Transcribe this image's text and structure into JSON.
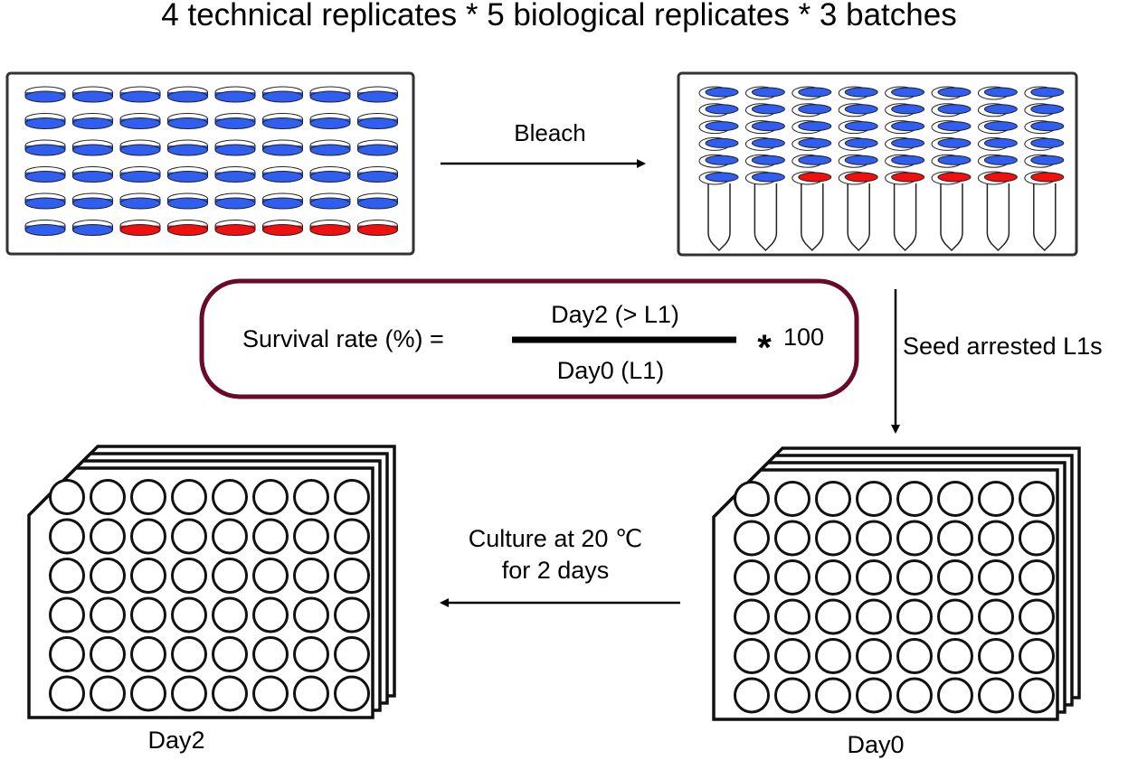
{
  "title": "4 technical replicates *  5 biological replicates * 3 batches",
  "colors": {
    "dish_blue": "#2f5ef0",
    "dish_red": "#f01010",
    "formula_border": "#6a0a2a",
    "line": "#1a1a1a"
  },
  "plate_layout": {
    "rows": 6,
    "columns": 8,
    "red_wells_in_last_row": [
      2,
      3,
      4,
      5,
      6,
      7
    ]
  },
  "tube_layout": {
    "tubes": 8,
    "dishes_per_tube": 6,
    "red_tube_indices": [
      2,
      3,
      4,
      5,
      6,
      7
    ]
  },
  "steps": {
    "bleach": "Bleach",
    "seed": "Seed arrested L1s",
    "culture_line1": "Culture at 20 ℃",
    "culture_line2": "for 2 days"
  },
  "formula": {
    "lhs": "Survival rate (%) =",
    "numerator": "Day2 (> L1)",
    "denominator": "Day0 (L1)",
    "multiplier_symbol": "*",
    "multiplier": "100"
  },
  "plates": {
    "day0_label": "Day0",
    "day2_label": "Day2"
  }
}
